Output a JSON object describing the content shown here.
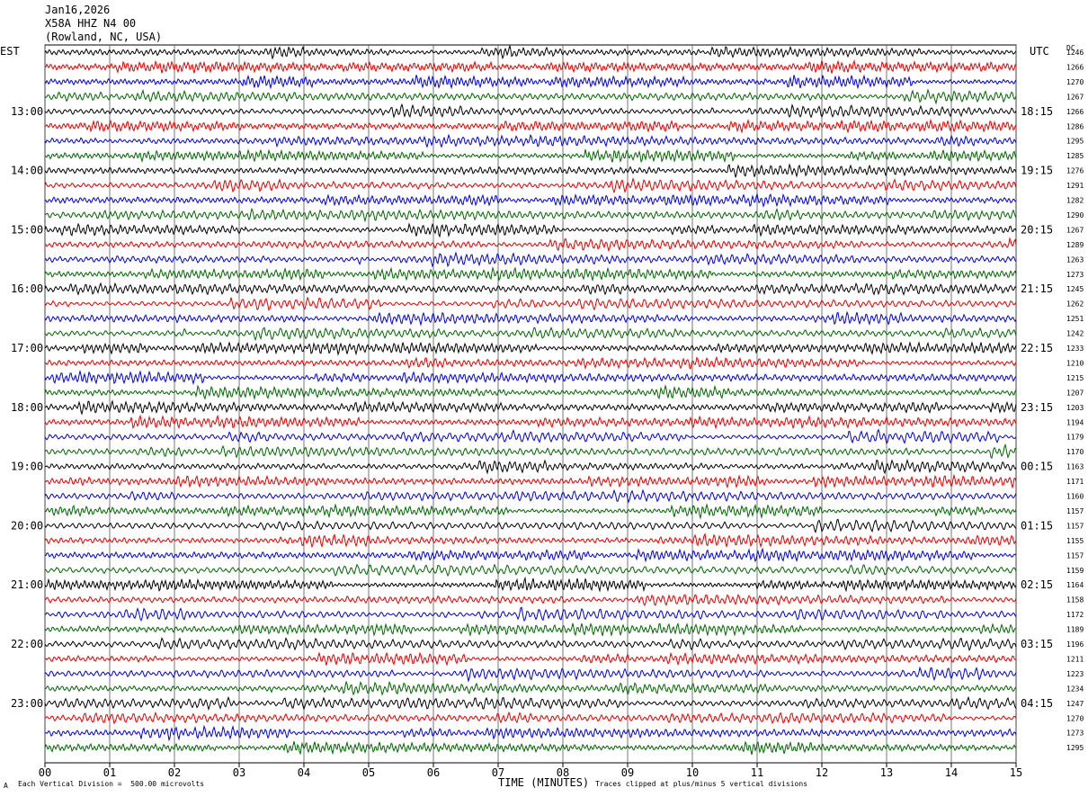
{
  "header": {
    "date": "Jan16,2026",
    "station": "X58A HHZ N4 00",
    "location": "(Rowland, NC, USA)"
  },
  "left_axis_label": "EST",
  "right_axis_label": "UTC",
  "dc_label": "DC",
  "footer": {
    "scale_note": "Each Vertical Division =  500.00 microvolts",
    "x_axis_title": "TIME (MINUTES)",
    "clip_note": "Traces clipped at plus/minus 5 vertical divisions",
    "corner_mark": "A"
  },
  "colors": {
    "trace_cycle": [
      "#000000",
      "#e00000",
      "#0000d0",
      "#006400"
    ],
    "grid": "#000000"
  },
  "chart_data": {
    "type": "line",
    "description_type": "helicorder",
    "x_ticks": [
      "00",
      "01",
      "02",
      "03",
      "04",
      "05",
      "06",
      "07",
      "08",
      "09",
      "10",
      "11",
      "12",
      "13",
      "14",
      "15"
    ],
    "xlim": [
      0,
      15
    ],
    "left_hour_labels": [
      "13:00",
      "14:00",
      "15:00",
      "16:00",
      "17:00",
      "18:00",
      "19:00",
      "20:00",
      "21:00",
      "22:00",
      "23:00"
    ],
    "right_hour_labels": [
      "18:15",
      "19:15",
      "20:15",
      "21:15",
      "22:15",
      "23:15",
      "00:15",
      "01:15",
      "02:15",
      "03:15",
      "04:15"
    ],
    "dc_offsets": [
      "1246",
      "1266",
      "1270",
      "1267",
      "1266",
      "1286",
      "1295",
      "1285",
      "1276",
      "1291",
      "1282",
      "1290",
      "1267",
      "1289",
      "1263",
      "1273",
      "1245",
      "1262",
      "1251",
      "1242",
      "1233",
      "1210",
      "1215",
      "1207",
      "1203",
      "1194",
      "1179",
      "1170",
      "1163",
      "1171",
      "1160",
      "1157",
      "1157",
      "1155",
      "1157",
      "1159",
      "1164",
      "1158",
      "1172",
      "1189",
      "1196",
      "1211",
      "1223",
      "1234",
      "1247",
      "1270",
      "1273",
      "1295"
    ],
    "trace_count": 48,
    "minutes_per_trace": 15
  }
}
